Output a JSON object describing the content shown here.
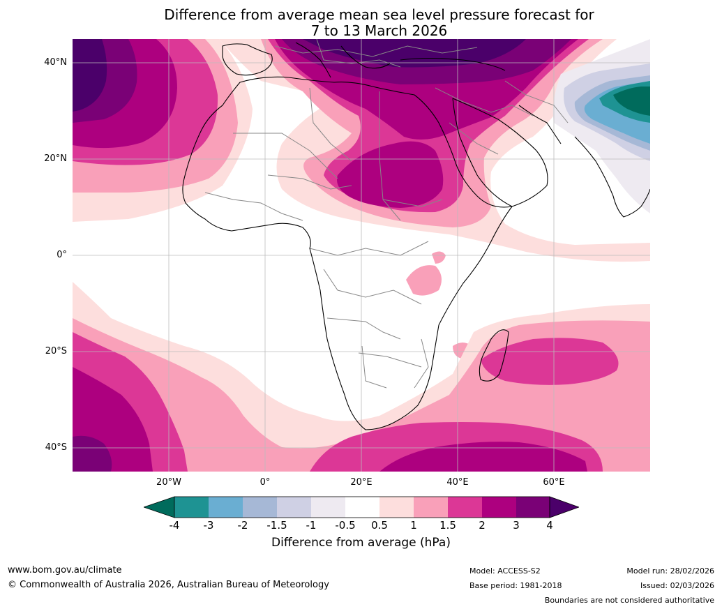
{
  "title": {
    "line1": "Difference from average mean sea level pressure forecast for",
    "line2": "7 to 13 March 2026"
  },
  "map": {
    "lat_labels": [
      "40°N",
      "20°N",
      "0°",
      "20°S",
      "40°S"
    ],
    "lon_labels": [
      "20°W",
      "0°",
      "20°E",
      "40°E",
      "60°E"
    ],
    "palette": {
      "lt_neg4": "#006b5c",
      "neg4_neg3": "#1e9393",
      "neg3_neg2": "#6aaed2",
      "neg2_neg15": "#a6b8d6",
      "neg15_neg1": "#cfd0e4",
      "neg1_neg05": "#eeeaf1",
      "neutral": "#ffffff",
      "p05_1": "#fddedd",
      "p1_15": "#f9a0b9",
      "p15_2": "#dc3796",
      "p2_3": "#ad007f",
      "p3_4": "#7a0176",
      "gt4": "#4b006a",
      "coast": "#000000",
      "border": "#888888",
      "grid": "#bbbbbb"
    }
  },
  "colorbar": {
    "ticks": [
      "-4",
      "-3",
      "-2",
      "-1.5",
      "-1",
      "-0.5",
      "0.5",
      "1",
      "1.5",
      "2",
      "3",
      "4"
    ],
    "label": "Difference from average (hPa)"
  },
  "footer": {
    "website": "www.bom.gov.au/climate",
    "copyright": "© Commonwealth of Australia 2026, Australian Bureau of Meteorology",
    "model": "Model: ACCESS-S2",
    "base_period": "Base period: 1981-2018",
    "model_run": "Model run: 28/02/2026",
    "issued": "Issued: 02/03/2026",
    "boundaries_note": "Boundaries are not considered authoritative"
  }
}
